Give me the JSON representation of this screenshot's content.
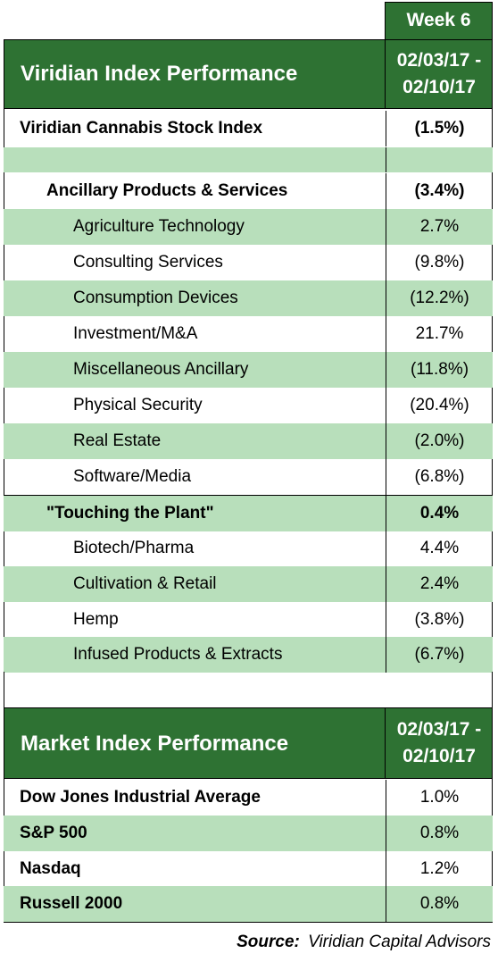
{
  "week_label": "Week 6",
  "viridian": {
    "title": "Viridian Index Performance",
    "date_line1": "02/03/17 -",
    "date_line2": "02/10/17",
    "index_name": "Viridian Cannabis Stock Index",
    "index_value": "(1.5%)",
    "ancillary": {
      "label": "Ancillary Products & Services",
      "value": "(3.4%)",
      "items": [
        {
          "label": "Agriculture Technology",
          "value": "2.7%"
        },
        {
          "label": "Consulting Services",
          "value": "(9.8%)"
        },
        {
          "label": "Consumption Devices",
          "value": "(12.2%)"
        },
        {
          "label": "Investment/M&A",
          "value": "21.7%"
        },
        {
          "label": "Miscellaneous Ancillary",
          "value": "(11.8%)"
        },
        {
          "label": "Physical Security",
          "value": "(20.4%)"
        },
        {
          "label": "Real Estate",
          "value": "(2.0%)"
        },
        {
          "label": "Software/Media",
          "value": "(6.8%)"
        }
      ]
    },
    "touching": {
      "label": "\"Touching the Plant\"",
      "value": "0.4%",
      "items": [
        {
          "label": "Biotech/Pharma",
          "value": "4.4%"
        },
        {
          "label": "Cultivation & Retail",
          "value": "2.4%"
        },
        {
          "label": "Hemp",
          "value": "(3.8%)"
        },
        {
          "label": "Infused Products & Extracts",
          "value": "(6.7%)"
        }
      ]
    }
  },
  "market": {
    "title": "Market Index Performance",
    "date_line1": "02/03/17 -",
    "date_line2": "02/10/17",
    "items": [
      {
        "label": "Dow Jones Industrial Average",
        "value": "1.0%"
      },
      {
        "label": "S&P 500",
        "value": "0.8%"
      },
      {
        "label": "Nasdaq",
        "value": "1.2%"
      },
      {
        "label": "Russell 2000",
        "value": "0.8%"
      }
    ]
  },
  "source": {
    "label": "Source:",
    "text": "Viridian Capital Advisors"
  },
  "colors": {
    "header_green": "#2e7233",
    "band_green": "#b8dfbb"
  }
}
